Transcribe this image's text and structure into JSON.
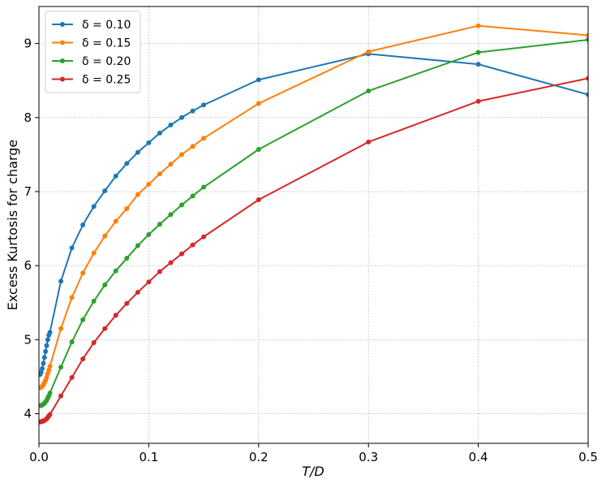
{
  "chart_data": {
    "type": "line",
    "xlabel": "T/D",
    "ylabel": "Excess Kurtosis for charge",
    "xlim": [
      0.0,
      0.5
    ],
    "ylim": [
      3.6,
      9.5
    ],
    "xticks": [
      "0.0",
      "0.1",
      "0.2",
      "0.3",
      "0.4",
      "0.5"
    ],
    "yticks": [
      "4",
      "5",
      "6",
      "7",
      "8",
      "9"
    ],
    "grid": true,
    "legend_position": "top-left",
    "series": [
      {
        "name": "δ = 0.10",
        "color": "#1f77b4",
        "x": [
          0.001,
          0.002,
          0.003,
          0.004,
          0.005,
          0.006,
          0.007,
          0.008,
          0.009,
          0.01,
          0.02,
          0.03,
          0.04,
          0.05,
          0.06,
          0.07,
          0.08,
          0.09,
          0.1,
          0.11,
          0.12,
          0.13,
          0.14,
          0.15,
          0.2,
          0.3,
          0.4,
          0.5
        ],
        "y": [
          4.53,
          4.56,
          4.61,
          4.68,
          4.76,
          4.84,
          4.92,
          5.0,
          5.06,
          5.1,
          5.79,
          6.24,
          6.55,
          6.8,
          7.01,
          7.21,
          7.38,
          7.53,
          7.66,
          7.79,
          7.9,
          8.0,
          8.09,
          8.17,
          8.51,
          8.86,
          8.72,
          8.31
        ]
      },
      {
        "name": "δ = 0.15",
        "color": "#ff7f0e",
        "x": [
          0.001,
          0.002,
          0.003,
          0.004,
          0.005,
          0.006,
          0.007,
          0.008,
          0.009,
          0.01,
          0.02,
          0.03,
          0.04,
          0.05,
          0.06,
          0.07,
          0.08,
          0.09,
          0.1,
          0.11,
          0.12,
          0.13,
          0.14,
          0.15,
          0.2,
          0.3,
          0.4,
          0.5
        ],
        "y": [
          4.35,
          4.36,
          4.37,
          4.39,
          4.42,
          4.45,
          4.49,
          4.54,
          4.59,
          4.64,
          5.15,
          5.57,
          5.9,
          6.17,
          6.4,
          6.6,
          6.77,
          6.96,
          7.1,
          7.24,
          7.37,
          7.5,
          7.61,
          7.72,
          8.19,
          8.89,
          9.24,
          9.11
        ]
      },
      {
        "name": "δ = 0.20",
        "color": "#2ca02c",
        "x": [
          0.001,
          0.002,
          0.003,
          0.004,
          0.005,
          0.006,
          0.007,
          0.008,
          0.009,
          0.01,
          0.02,
          0.03,
          0.04,
          0.05,
          0.06,
          0.07,
          0.08,
          0.09,
          0.1,
          0.11,
          0.12,
          0.13,
          0.14,
          0.15,
          0.2,
          0.3,
          0.4,
          0.5
        ],
        "y": [
          4.11,
          4.11,
          4.12,
          4.13,
          4.14,
          4.16,
          4.18,
          4.21,
          4.24,
          4.28,
          4.63,
          4.97,
          5.27,
          5.52,
          5.74,
          5.93,
          6.1,
          6.27,
          6.42,
          6.56,
          6.69,
          6.82,
          6.94,
          7.06,
          7.57,
          8.36,
          8.88,
          9.05
        ]
      },
      {
        "name": "δ = 0.25",
        "color": "#d62728",
        "x": [
          0.001,
          0.002,
          0.003,
          0.004,
          0.005,
          0.006,
          0.007,
          0.008,
          0.009,
          0.01,
          0.02,
          0.03,
          0.04,
          0.05,
          0.06,
          0.07,
          0.08,
          0.09,
          0.1,
          0.11,
          0.12,
          0.13,
          0.14,
          0.15,
          0.2,
          0.3,
          0.4,
          0.5
        ],
        "y": [
          3.89,
          3.89,
          3.9,
          3.9,
          3.91,
          3.92,
          3.93,
          3.95,
          3.97,
          3.99,
          4.24,
          4.49,
          4.74,
          4.96,
          5.15,
          5.33,
          5.49,
          5.64,
          5.78,
          5.92,
          6.04,
          6.16,
          6.28,
          6.39,
          6.89,
          7.67,
          8.22,
          8.53
        ]
      }
    ]
  }
}
